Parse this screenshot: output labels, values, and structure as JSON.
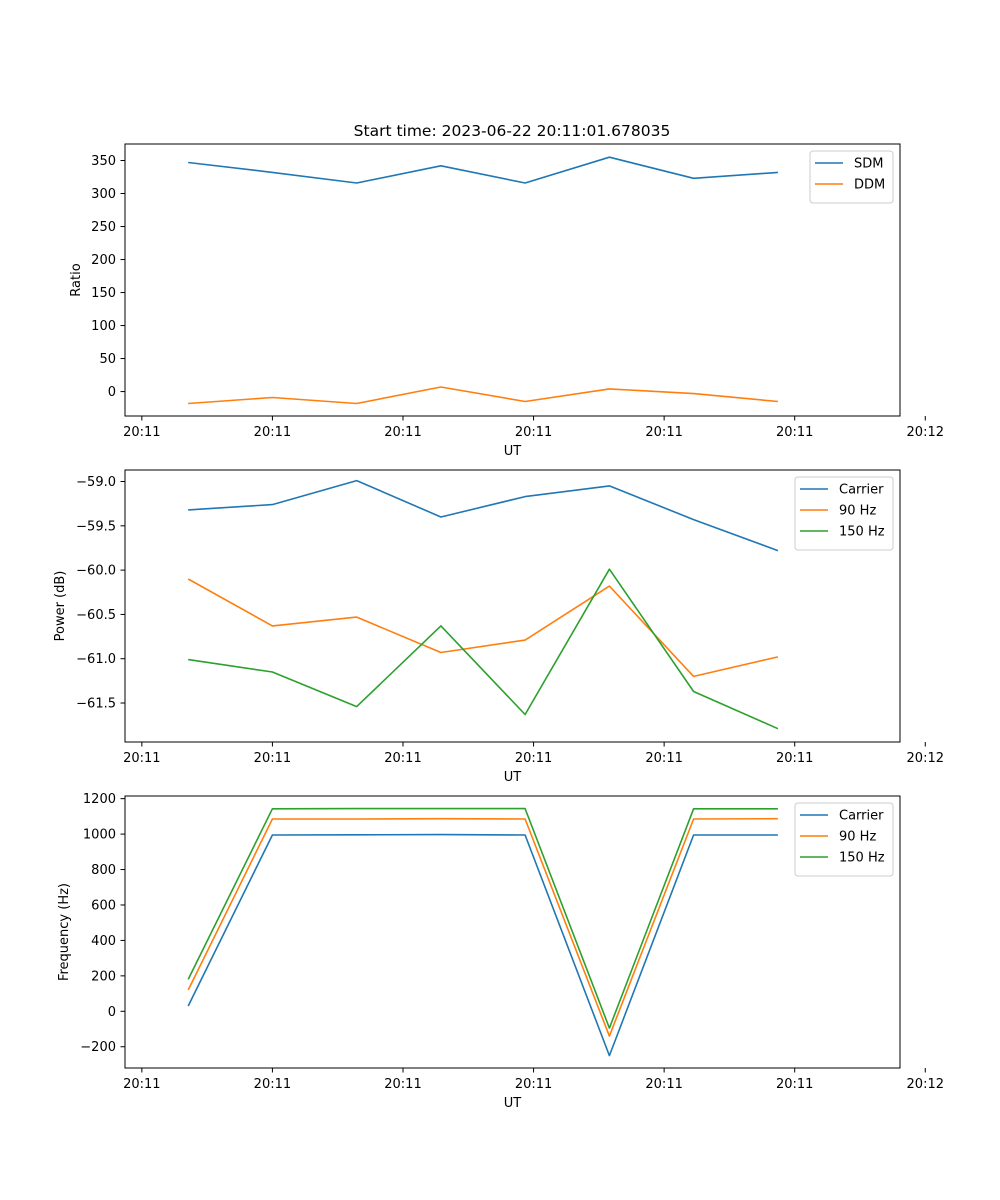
{
  "figure": {
    "title": "Start time: 2023-06-22 20:11:01.678035"
  },
  "colors": {
    "series_1": "#1f77b4",
    "series_2": "#ff7f0e",
    "series_3": "#2ca02c"
  },
  "chart_data": [
    {
      "type": "line",
      "title": "Start time: 2023-06-22 20:11:01.678035",
      "xlabel": "UT",
      "ylabel": "Ratio",
      "x_index": [
        0,
        1,
        2,
        3,
        4,
        5,
        6,
        7
      ],
      "xlim": [
        -0.75,
        8.45
      ],
      "x_ticks": [
        {
          "at": -0.55,
          "label": "20:11"
        },
        {
          "at": 1.0,
          "label": "20:11"
        },
        {
          "at": 2.55,
          "label": "20:11"
        },
        {
          "at": 4.1,
          "label": "20:11"
        },
        {
          "at": 5.65,
          "label": "20:11"
        },
        {
          "at": 7.2,
          "label": "20:11"
        },
        {
          "at": 8.75,
          "label": "20:12"
        }
      ],
      "ylim": [
        -37,
        375
      ],
      "y_ticks": [
        {
          "at": 350,
          "label": "350"
        },
        {
          "at": 300,
          "label": "300"
        },
        {
          "at": 250,
          "label": "250"
        },
        {
          "at": 200,
          "label": "200"
        },
        {
          "at": 150,
          "label": "150"
        },
        {
          "at": 100,
          "label": "100"
        },
        {
          "at": 50,
          "label": "50"
        },
        {
          "at": 0,
          "label": "0"
        }
      ],
      "legend_position": "top-right",
      "grid": false,
      "series": [
        {
          "name": "SDM",
          "values": [
            347,
            332,
            316,
            342,
            316,
            355,
            323,
            332
          ]
        },
        {
          "name": "DDM",
          "values": [
            -18,
            -9,
            -18,
            7,
            -15,
            4,
            -3,
            -15
          ]
        }
      ]
    },
    {
      "type": "line",
      "title": "",
      "xlabel": "UT",
      "ylabel": "Power (dB)",
      "x_index": [
        0,
        1,
        2,
        3,
        4,
        5,
        6,
        7
      ],
      "xlim": [
        -0.75,
        8.45
      ],
      "x_ticks": [
        {
          "at": -0.55,
          "label": "20:11"
        },
        {
          "at": 1.0,
          "label": "20:11"
        },
        {
          "at": 2.55,
          "label": "20:11"
        },
        {
          "at": 4.1,
          "label": "20:11"
        },
        {
          "at": 5.65,
          "label": "20:11"
        },
        {
          "at": 7.2,
          "label": "20:11"
        },
        {
          "at": 8.75,
          "label": "20:12"
        }
      ],
      "ylim": [
        -61.94,
        -58.87
      ],
      "y_ticks": [
        {
          "at": -59.0,
          "label": "−59.0"
        },
        {
          "at": -59.5,
          "label": "−59.5"
        },
        {
          "at": -60.0,
          "label": "−60.0"
        },
        {
          "at": -60.5,
          "label": "−60.5"
        },
        {
          "at": -61.0,
          "label": "−61.0"
        },
        {
          "at": -61.5,
          "label": "−61.5"
        }
      ],
      "legend_position": "top-right",
      "grid": false,
      "series": [
        {
          "name": "Carrier",
          "values": [
            -59.32,
            -59.26,
            -58.99,
            -59.4,
            -59.17,
            -59.05,
            -59.43,
            -59.78
          ]
        },
        {
          "name": "90 Hz",
          "values": [
            -60.1,
            -60.63,
            -60.53,
            -60.93,
            -60.79,
            -60.18,
            -61.2,
            -60.98
          ]
        },
        {
          "name": "150 Hz",
          "values": [
            -61.01,
            -61.15,
            -61.54,
            -60.63,
            -61.63,
            -59.99,
            -61.37,
            -61.79
          ]
        }
      ]
    },
    {
      "type": "line",
      "title": "",
      "xlabel": "UT",
      "ylabel": "Frequency (Hz)",
      "x_index": [
        0,
        1,
        2,
        3,
        4,
        5,
        6,
        7
      ],
      "xlim": [
        -0.75,
        8.45
      ],
      "x_ticks": [
        {
          "at": -0.55,
          "label": "20:11"
        },
        {
          "at": 1.0,
          "label": "20:11"
        },
        {
          "at": 2.55,
          "label": "20:11"
        },
        {
          "at": 4.1,
          "label": "20:11"
        },
        {
          "at": 5.65,
          "label": "20:11"
        },
        {
          "at": 7.2,
          "label": "20:11"
        },
        {
          "at": 8.75,
          "label": "20:12"
        }
      ],
      "ylim": [
        -320,
        1215
      ],
      "y_ticks": [
        {
          "at": 1200,
          "label": "1200"
        },
        {
          "at": 1000,
          "label": "1000"
        },
        {
          "at": 800,
          "label": "800"
        },
        {
          "at": 600,
          "label": "600"
        },
        {
          "at": 400,
          "label": "400"
        },
        {
          "at": 200,
          "label": "200"
        },
        {
          "at": 0,
          "label": "0"
        },
        {
          "at": -200,
          "label": "−200"
        }
      ],
      "legend_position": "top-right",
      "grid": false,
      "series": [
        {
          "name": "Carrier",
          "values": [
            30,
            995,
            996,
            997,
            995,
            -250,
            995,
            995
          ]
        },
        {
          "name": "90 Hz",
          "values": [
            120,
            1085,
            1085,
            1087,
            1085,
            -140,
            1085,
            1087
          ]
        },
        {
          "name": "150 Hz",
          "values": [
            180,
            1143,
            1144,
            1144,
            1144,
            -95,
            1143,
            1143
          ]
        }
      ]
    }
  ]
}
